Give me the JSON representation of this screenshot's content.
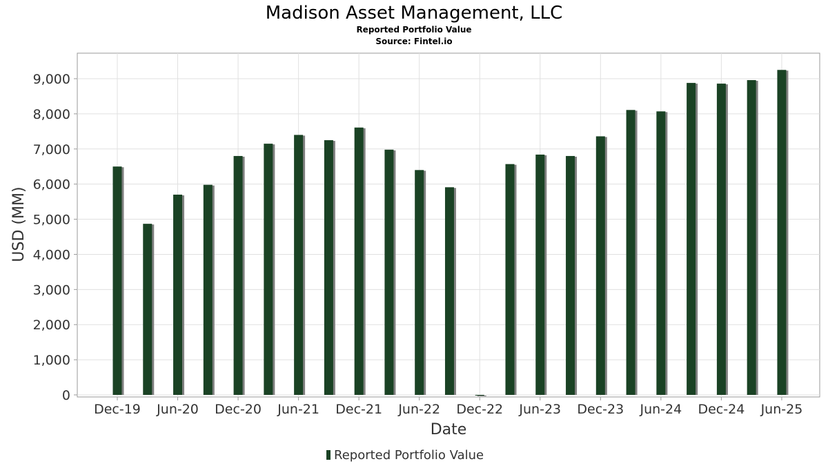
{
  "chart_data": {
    "type": "bar",
    "title": "Madison Asset Management, LLC",
    "subtitle": "Reported Portfolio Value",
    "source": "Source: Fintel.io",
    "xlabel": "Date",
    "ylabel": "USD (MM)",
    "ylim": [
      0,
      9700
    ],
    "yticks": [
      0,
      1000,
      2000,
      3000,
      4000,
      5000,
      6000,
      7000,
      8000,
      9000
    ],
    "ytick_labels": [
      "0",
      "1,000",
      "2,000",
      "3,000",
      "4,000",
      "5,000",
      "6,000",
      "7,000",
      "8,000",
      "9,000"
    ],
    "xtick_labels": [
      "Dec-19",
      "Jun-20",
      "Dec-20",
      "Jun-21",
      "Dec-21",
      "Jun-22",
      "Dec-22",
      "Jun-23",
      "Dec-23",
      "Jun-24",
      "Dec-24",
      "Jun-25"
    ],
    "categories": [
      "Dec-19",
      "Mar-20",
      "Jun-20",
      "Sep-20",
      "Dec-20",
      "Mar-21",
      "Jun-21",
      "Sep-21",
      "Dec-21",
      "Mar-22",
      "Jun-22",
      "Sep-22",
      "Dec-22",
      "Mar-23",
      "Jun-23",
      "Sep-23",
      "Dec-23",
      "Mar-24",
      "Jun-24",
      "Sep-24",
      "Dec-24",
      "Mar-25",
      "Jun-25"
    ],
    "series": [
      {
        "name": "Reported Portfolio Value",
        "values": [
          6500,
          4870,
          5700,
          5980,
          6800,
          7150,
          7400,
          7250,
          7610,
          6980,
          6400,
          5910,
          0,
          6570,
          6840,
          6800,
          7360,
          8110,
          8070,
          8880,
          8860,
          8960,
          9250
        ]
      }
    ],
    "grid": true,
    "legend": "bottom-center",
    "colors": {
      "bar": "#1a4224",
      "shadow": "#808080",
      "grid": "#e0e0e0",
      "axis": "#999999"
    }
  }
}
